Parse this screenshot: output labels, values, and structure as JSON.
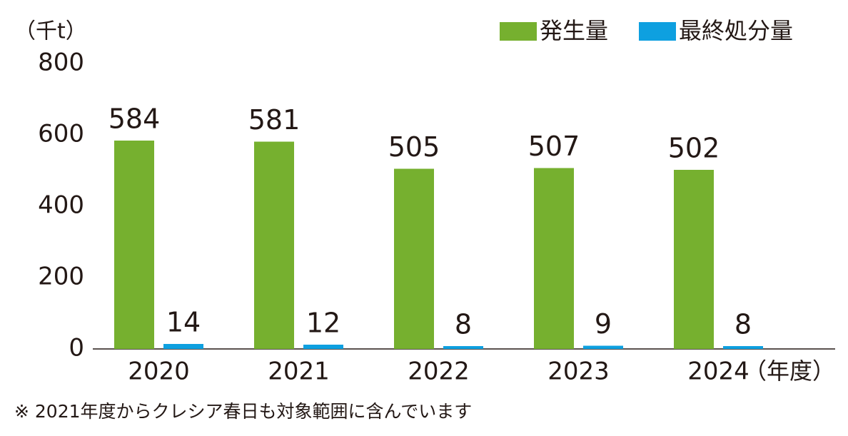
{
  "chart_data": {
    "type": "bar",
    "unit_label": "（千t）",
    "x_unit_label": "（年度）",
    "footnote": "※ 2021年度からクレシア春日も対象範囲に含んでいます",
    "categories": [
      "2020",
      "2021",
      "2022",
      "2023",
      "2024"
    ],
    "series": [
      {
        "name": "発生量",
        "color": "#76b02f",
        "values": [
          584,
          581,
          505,
          507,
          502
        ]
      },
      {
        "name": "最終処分量",
        "color": "#0ea0e0",
        "values": [
          14,
          12,
          8,
          9,
          8
        ]
      }
    ],
    "ylim": [
      0,
      800
    ],
    "yticks": [
      0,
      200,
      400,
      600,
      800
    ],
    "legend": "top-right"
  }
}
